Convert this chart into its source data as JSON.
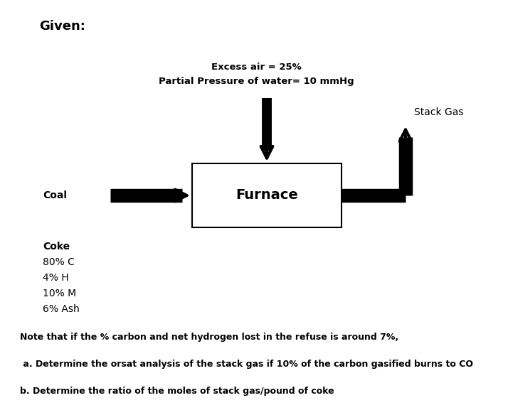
{
  "given_label": "Given:",
  "excess_air_text": "Excess air = 25%",
  "partial_pressure_text": "Partial Pressure of water= 10 mmHg",
  "furnace_label": "Furnace",
  "coal_label": "Coal",
  "stack_gas_label": "Stack Gas",
  "coke_lines": [
    "Coke",
    "80% C",
    "4% H",
    "10% M",
    "6% Ash"
  ],
  "note_text": "Note that if the % carbon and net hydrogen lost in the refuse is around 7%,",
  "question_a": " a. Determine the orsat analysis of the stack gas if 10% of the carbon gasified burns to CO",
  "question_b": "b. Determine the ratio of the moles of stack gas/pound of coke",
  "background_color": "#ffffff",
  "text_color": "#000000",
  "arrow_color": "#000000",
  "box_color": "#000000",
  "fig_width": 7.14,
  "fig_height": 5.84,
  "dpi": 100
}
